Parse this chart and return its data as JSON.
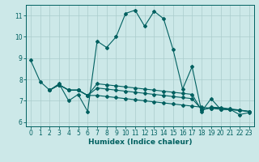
{
  "title": "",
  "xlabel": "Humidex (Indice chaleur)",
  "bg_color": "#cce8e8",
  "grid_color": "#aacccc",
  "line_color": "#006060",
  "xlim": [
    -0.5,
    23.5
  ],
  "ylim": [
    5.8,
    11.5
  ],
  "yticks": [
    6,
    7,
    8,
    9,
    10,
    11
  ],
  "xticks": [
    0,
    1,
    2,
    3,
    4,
    5,
    6,
    7,
    8,
    9,
    10,
    11,
    12,
    13,
    14,
    15,
    16,
    17,
    18,
    19,
    20,
    21,
    22,
    23
  ],
  "line1_x": [
    0,
    1,
    2,
    3,
    4,
    5,
    6,
    7,
    8,
    9,
    10,
    11,
    12,
    13,
    14,
    15,
    16,
    17,
    18,
    19,
    20,
    21,
    22,
    23
  ],
  "line1_y": [
    8.9,
    7.9,
    7.5,
    7.8,
    7.0,
    7.3,
    6.5,
    9.8,
    9.5,
    10.0,
    11.1,
    11.25,
    10.5,
    11.2,
    10.85,
    9.4,
    7.55,
    8.6,
    6.5,
    7.1,
    6.6,
    6.6,
    6.35,
    6.45
  ],
  "line2_x": [
    2,
    3,
    4,
    5,
    6,
    7,
    8,
    9,
    10,
    11,
    12,
    13,
    14,
    15,
    16,
    17,
    18,
    19,
    20,
    21,
    22,
    23
  ],
  "line2_y": [
    7.5,
    7.75,
    7.5,
    7.5,
    7.25,
    7.25,
    7.2,
    7.15,
    7.1,
    7.05,
    7.0,
    6.95,
    6.9,
    6.85,
    6.8,
    6.75,
    6.7,
    6.65,
    6.6,
    6.58,
    6.55,
    6.5
  ],
  "line3_x": [
    2,
    3,
    4,
    5,
    6,
    7,
    8,
    9,
    10,
    11,
    12,
    13,
    14,
    15,
    16,
    17,
    18,
    19,
    20,
    21,
    22,
    23
  ],
  "line3_y": [
    7.5,
    7.75,
    7.5,
    7.5,
    7.25,
    7.6,
    7.55,
    7.5,
    7.45,
    7.4,
    7.35,
    7.3,
    7.25,
    7.2,
    7.15,
    7.1,
    6.6,
    6.65,
    6.65,
    6.6,
    6.55,
    6.5
  ],
  "line4_x": [
    2,
    3,
    4,
    5,
    6,
    7,
    8,
    9,
    10,
    11,
    12,
    13,
    14,
    15,
    16,
    17,
    18,
    19,
    20,
    21,
    22,
    23
  ],
  "line4_y": [
    7.5,
    7.75,
    7.5,
    7.5,
    7.25,
    7.8,
    7.75,
    7.7,
    7.65,
    7.6,
    7.55,
    7.5,
    7.45,
    7.4,
    7.35,
    7.3,
    6.55,
    6.7,
    6.68,
    6.62,
    6.57,
    6.5
  ]
}
